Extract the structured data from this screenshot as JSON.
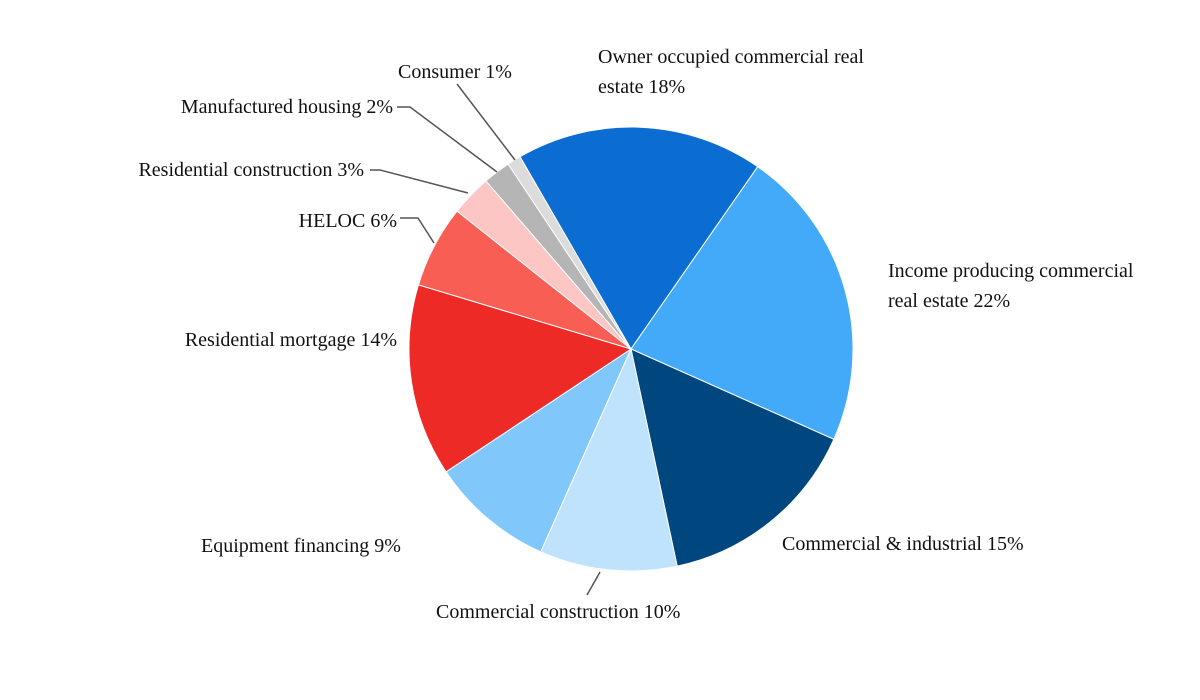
{
  "chart_data": {
    "type": "pie",
    "categories": [
      "Owner occupied commercial real estate",
      "Income producing commercial real estate",
      "Commercial & industrial",
      "Commercial construction",
      "Equipment financing",
      "Residential mortgage",
      "HELOC",
      "Residential construction",
      "Manufactured housing",
      "Consumer"
    ],
    "values": [
      18,
      22,
      15,
      10,
      9,
      14,
      6,
      3,
      2,
      1
    ],
    "value_labels": [
      "18%",
      "22%",
      "15%",
      "10%",
      "9%",
      "14%",
      "6%",
      "3%",
      "2%",
      "1%"
    ],
    "colors": [
      "#0b6dd1",
      "#42aaf8",
      "#00467f",
      "#bfe3fd",
      "#80c7fb",
      "#ee2a27",
      "#f95e55",
      "#fcc6c5",
      "#b5b5b5",
      "#dcdcdc"
    ]
  }
}
